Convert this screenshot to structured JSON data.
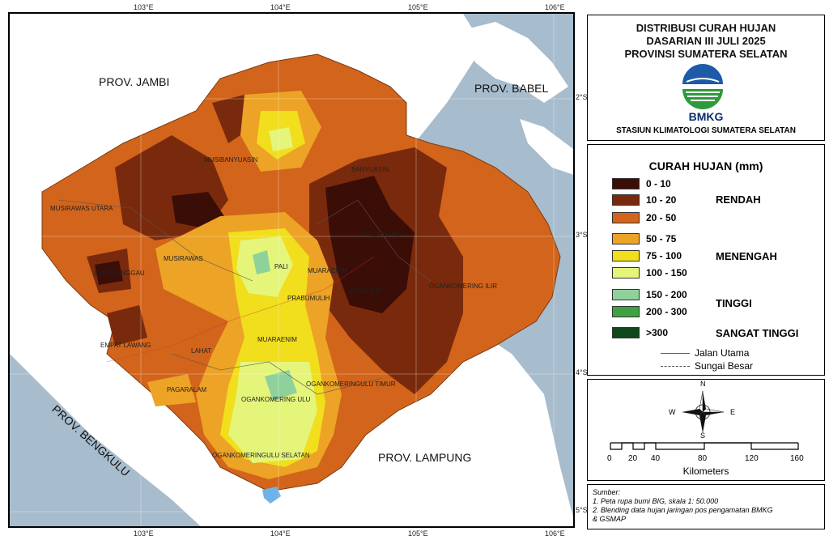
{
  "map": {
    "top_ticks": [
      "103°E",
      "104°E",
      "105°E",
      "106°E"
    ],
    "bottom_ticks": [
      "103°E",
      "104°E",
      "105°E",
      "106°E"
    ],
    "right_ticks": [
      "2°S",
      "3°S",
      "4°S",
      "5°S"
    ],
    "provinces": {
      "jambi": "PROV. JAMBI",
      "babel": "PROV. BABEL",
      "bengkulu": "PROV. BENGKULU",
      "lampung": "PROV. LAMPUNG"
    },
    "regions": {
      "musibanyuasin": "MUSIBANYUASIN",
      "banyuasin": "BANYUASIN",
      "musirawas_utara": "MUSIRAWAS UTARA",
      "musirawas": "MUSIRAWAS",
      "lubuklinggau": "LUBUKLINGGAU",
      "pali": "PALI",
      "palembang": "PALEMBANG",
      "muaraenim_top": "MUARAENIM",
      "prabumulih": "PRABUMULIH",
      "ogan_ilir": "OGAN ILIR",
      "ogankomering_ilir": "OGANKOMERING ILIR",
      "empat_lawang": "EMPAT LAWANG",
      "lahat": "LAHAT",
      "muaraenim": "MUARAENIM",
      "ogankomeringulu_timur": "OGANKOMERINGULU TIMUR",
      "pagaralam": "PAGARALAM",
      "ogankomering_ulu": "OGANKOMERING ULU",
      "ogankomeringulu_selatan": "OGANKOMERINGULU SELATAN"
    }
  },
  "title": {
    "line1": "DISTRIBUSI CURAH HUJAN",
    "line2": "DASARIAN III JULI 2025",
    "line3": "PROVINSI SUMATERA SELATAN",
    "agency": "BMKG",
    "station": "STASIUN KLIMATOLOGI SUMATERA SELATAN"
  },
  "legend": {
    "title": "CURAH HUJAN (mm)",
    "classes": [
      {
        "label": "0 - 10",
        "color": "#3b0d07"
      },
      {
        "label": "10 - 20",
        "color": "#7a2a0c"
      },
      {
        "label": "20 - 50",
        "color": "#d2641b"
      },
      {
        "label": "50 - 75",
        "color": "#eca326"
      },
      {
        "label": "75 - 100",
        "color": "#f1de1d"
      },
      {
        "label": "100 - 150",
        "color": "#e4f57a"
      },
      {
        "label": "150 - 200",
        "color": "#8fd19a"
      },
      {
        "label": "200 - 300",
        "color": "#3fa144"
      },
      {
        "label": ">300",
        "color": "#0f4a1c"
      }
    ],
    "categories": {
      "rendah": "RENDAH",
      "menengah": "MENENGAH",
      "tinggi": "TINGGI",
      "sangat_tinggi": "SANGAT TINGGI"
    },
    "road": "Jalan Utama",
    "river": "Sungai Besar",
    "road_color": "#c0392b",
    "river_color": "#555555"
  },
  "scalebar": {
    "compass": {
      "n": "N",
      "s": "S",
      "e": "E",
      "w": "W"
    },
    "ticks": [
      "0",
      "20",
      "40",
      "80",
      "120",
      "160"
    ],
    "unit": "Kilometers"
  },
  "source": {
    "heading": "Sumber:",
    "line1": "1. Peta rupa bumi BIG, skala 1: 50.000",
    "line2": "2. Blending data hujan jaringan pos pengamatan BMKG",
    "line3": "& GSMAP"
  }
}
